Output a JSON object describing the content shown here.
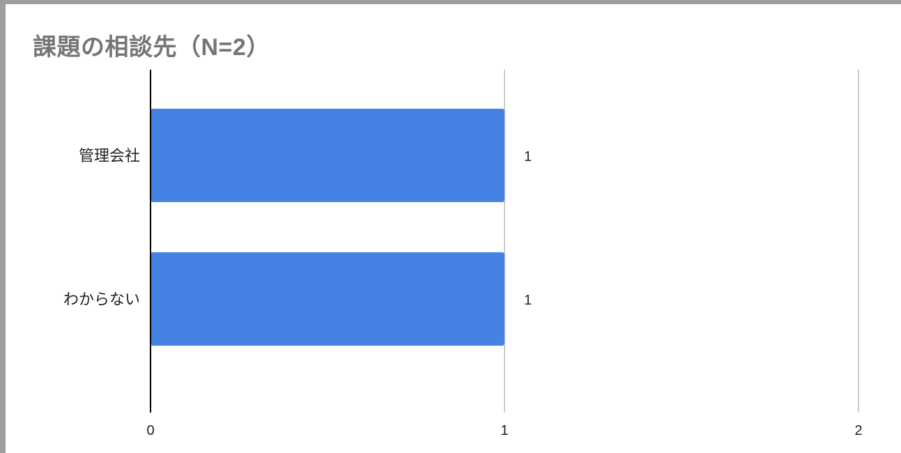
{
  "chart_data": {
    "type": "bar",
    "orientation": "horizontal",
    "title": "課題の相談先（N=2）",
    "categories": [
      "管理会社",
      "わからない"
    ],
    "values": [
      1,
      1
    ],
    "data_labels": [
      "1",
      "1"
    ],
    "xlim": [
      0,
      2
    ],
    "x_ticks": [
      0,
      1,
      2
    ],
    "x_tick_labels": [
      "0",
      "1",
      "2"
    ],
    "xlabel": "",
    "ylabel": "",
    "grid": true,
    "legend": "none",
    "colors": {
      "bar": "#4682e4",
      "title": "#757575",
      "gridline": "#cccccc",
      "axis": "#000000",
      "frame": "#9e9e9e"
    }
  }
}
